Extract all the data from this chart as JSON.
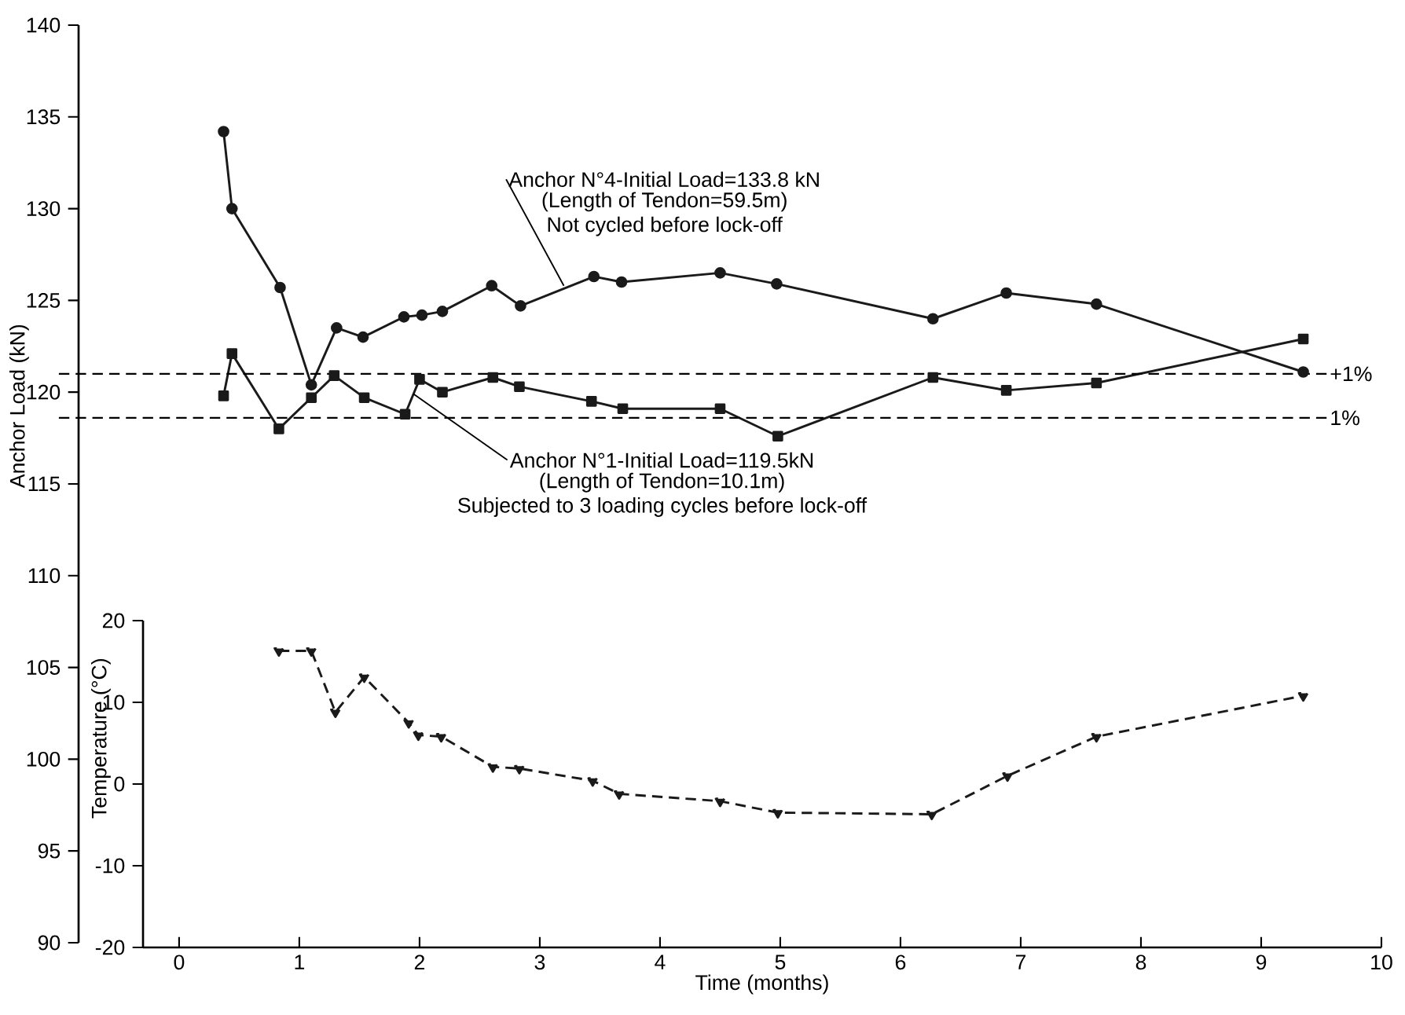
{
  "chart_data": {
    "type": "line",
    "xlabel": "Time (months)",
    "ylabel": "Anchor Load (kN)",
    "y2label": "Temperature (°C)",
    "xlim": [
      -0.3,
      10
    ],
    "xticks": [
      0,
      1,
      2,
      3,
      4,
      5,
      6,
      7,
      8,
      9,
      10
    ],
    "ylim": [
      90,
      140
    ],
    "yticks": [
      90,
      95,
      100,
      105,
      110,
      115,
      120,
      125,
      130,
      135,
      140
    ],
    "y2lim": [
      -20,
      20
    ],
    "y2ticks": [
      -20,
      -10,
      0,
      10,
      20
    ],
    "grid": false,
    "series": [
      {
        "color": "#1a1a1a",
        "marker": "circle",
        "line_style": "solid",
        "x": [
          0.37,
          0.44,
          0.84,
          1.1,
          1.31,
          1.53,
          1.87,
          2.02,
          2.19,
          2.6,
          2.84,
          3.45,
          3.68,
          4.5,
          4.97,
          6.27,
          6.88,
          7.63,
          9.35
        ],
        "values": [
          134.2,
          130.0,
          125.7,
          120.4,
          123.5,
          123.0,
          124.1,
          124.2,
          124.4,
          125.8,
          124.7,
          126.3,
          126.0,
          126.5,
          125.9,
          124.0,
          125.4,
          124.8,
          121.1
        ]
      },
      {
        "color": "#1a1a1a",
        "marker": "square",
        "line_style": "solid",
        "x": [
          0.37,
          0.44,
          0.83,
          1.1,
          1.29,
          1.54,
          1.88,
          2.0,
          2.19,
          2.61,
          2.83,
          3.43,
          3.69,
          4.5,
          4.98,
          6.27,
          6.88,
          7.63,
          9.35
        ],
        "values": [
          119.8,
          122.1,
          118.0,
          119.7,
          120.9,
          119.7,
          118.8,
          120.7,
          120.0,
          120.8,
          120.3,
          119.5,
          119.1,
          119.1,
          117.6,
          120.8,
          120.1,
          120.5,
          122.9
        ]
      },
      {
        "color": "#1a1a1a",
        "marker": "triangle",
        "line_style": "dashed",
        "axis": "y2",
        "x": [
          0.83,
          1.1,
          1.3,
          1.54,
          1.91,
          1.99,
          2.18,
          2.61,
          2.83,
          3.44,
          3.66,
          4.5,
          4.98,
          6.26,
          6.89,
          7.63,
          9.35
        ],
        "values": [
          16.3,
          16.3,
          8.8,
          13.1,
          7.5,
          6.0,
          5.8,
          2.1,
          1.9,
          0.4,
          -1.2,
          -2.1,
          -3.5,
          -3.7,
          1.0,
          5.8,
          10.8
        ]
      }
    ],
    "ref_lines": [
      {
        "axis": "y",
        "value": 121.0,
        "line_style": "dashed"
      },
      {
        "axis": "y",
        "value": 118.6,
        "line_style": "dashed"
      }
    ],
    "annotations": [
      {
        "text": "Anchor N°4-Initial Load=133.8 kN",
        "x": 3.2,
        "y": 125.8
      },
      "(Length of Tendon=59.5m)",
      "Not cycled before lock-off",
      {
        "text": "Anchor N°1-Initial Load=119.5kN",
        "x": 1.95,
        "y": 119.9
      },
      "(Length of Tendon=10.1m)",
      "Subjected to 3 loading cycles before lock-off",
      {
        "text": "+1%",
        "x": 9.55,
        "y": 121.0
      },
      {
        "text": "1%",
        "x": 9.55,
        "y": 118.6
      }
    ]
  }
}
